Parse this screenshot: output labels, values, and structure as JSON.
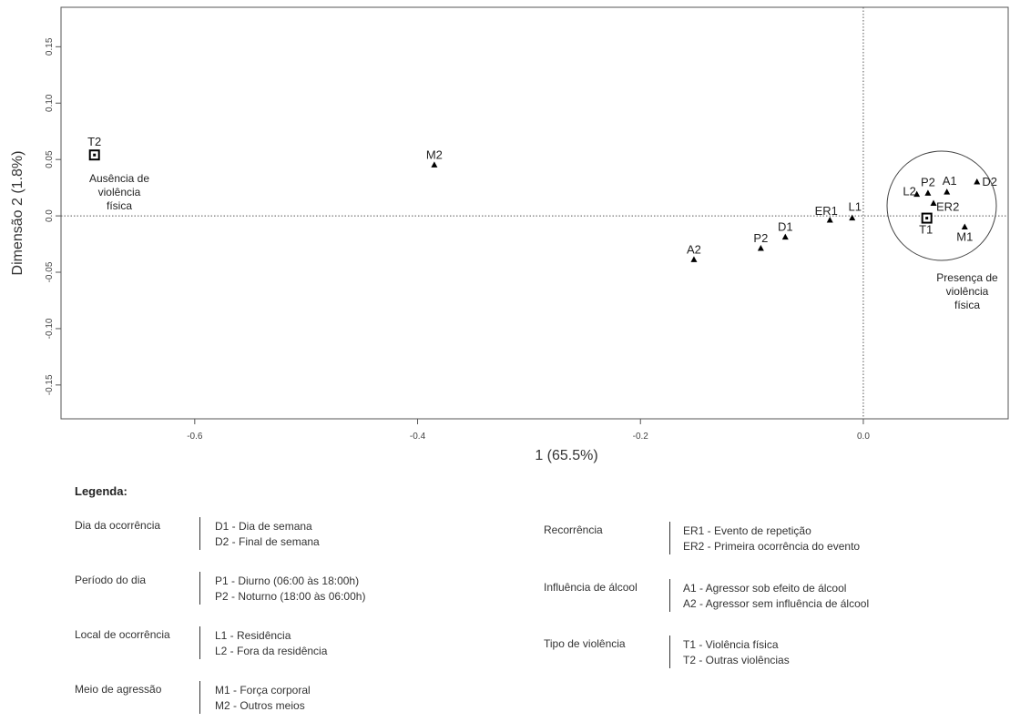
{
  "chart_data": {
    "type": "scatter",
    "xlabel": "1 (65.5%)",
    "ylabel": "Dimensão  2 (1.8%)",
    "xlim": [
      -0.72,
      0.13
    ],
    "ylim": [
      -0.18,
      0.185
    ],
    "x_ticks": [
      -0.6,
      -0.4,
      -0.2,
      0.0
    ],
    "x_tick_labels": [
      "-0.6",
      "-0.4",
      "-0.2",
      "0.0"
    ],
    "y_ticks": [
      0.15,
      0.1,
      0.05,
      0.0,
      -0.05,
      -0.1,
      -0.15
    ],
    "y_tick_labels": [
      "0.15",
      "0.10",
      "0.05",
      "0.0",
      "-0.05",
      "-0.10",
      "-0.15"
    ],
    "reference_lines": {
      "x": 0.0,
      "y": 0.0,
      "style": "dotted"
    },
    "points": [
      {
        "label": "T2",
        "x": -0.69,
        "y": 0.054,
        "marker": "square"
      },
      {
        "label": "M2",
        "x": -0.385,
        "y": 0.045,
        "marker": "triangle"
      },
      {
        "label": "A2",
        "x": -0.152,
        "y": -0.039,
        "marker": "triangle"
      },
      {
        "label": "P2",
        "x": -0.092,
        "y": -0.029,
        "marker": "triangle"
      },
      {
        "label": "D1",
        "x": -0.07,
        "y": -0.019,
        "marker": "triangle"
      },
      {
        "label": "ER1",
        "x": -0.03,
        "y": -0.004,
        "marker": "triangle"
      },
      {
        "label": "L1",
        "x": -0.01,
        "y": -0.002,
        "marker": "triangle"
      },
      {
        "label": "L2",
        "x": 0.048,
        "y": 0.019,
        "marker": "triangle"
      },
      {
        "label": "P2",
        "x": 0.058,
        "y": 0.02,
        "marker": "triangle"
      },
      {
        "label": "A1",
        "x": 0.075,
        "y": 0.021,
        "marker": "triangle"
      },
      {
        "label": "D2",
        "x": 0.102,
        "y": 0.03,
        "marker": "triangle"
      },
      {
        "label": "ER2",
        "x": 0.063,
        "y": 0.011,
        "marker": "triangle"
      },
      {
        "label": "T1",
        "x": 0.057,
        "y": -0.002,
        "marker": "square"
      },
      {
        "label": "M1",
        "x": 0.091,
        "y": -0.01,
        "marker": "triangle"
      }
    ],
    "annotations": [
      {
        "lines": [
          "Ausência de",
          "violência",
          "física"
        ]
      },
      {
        "lines": [
          "Presença de",
          "violência",
          "física"
        ]
      }
    ]
  },
  "legend": {
    "title": "Legenda:",
    "groups": [
      {
        "label": "Dia da ocorrência",
        "items": [
          "D1 - Dia de semana",
          "D2 - Final de semana"
        ]
      },
      {
        "label": "Período do dia",
        "items": [
          "P1 - Diurno (06:00 às 18:00h)",
          "P2 - Noturno (18:00 às 06:00h)"
        ]
      },
      {
        "label": "Local de ocorrência",
        "items": [
          "L1 - Residência",
          "L2 - Fora da residência"
        ]
      },
      {
        "label": "Meio de agressão",
        "items": [
          "M1 - Força corporal",
          "M2 - Outros meios"
        ]
      },
      {
        "label": "Recorrência",
        "items": [
          "ER1 - Evento de repetição",
          "ER2 - Primeira ocorrência do evento"
        ]
      },
      {
        "label": "Influência de álcool",
        "items": [
          "A1 - Agressor sob efeito de álcool",
          "A2 - Agressor sem influência de álcool"
        ]
      },
      {
        "label": "Tipo de violência",
        "items": [
          "T1 - Violência física",
          "T2 - Outras violências"
        ]
      }
    ]
  }
}
